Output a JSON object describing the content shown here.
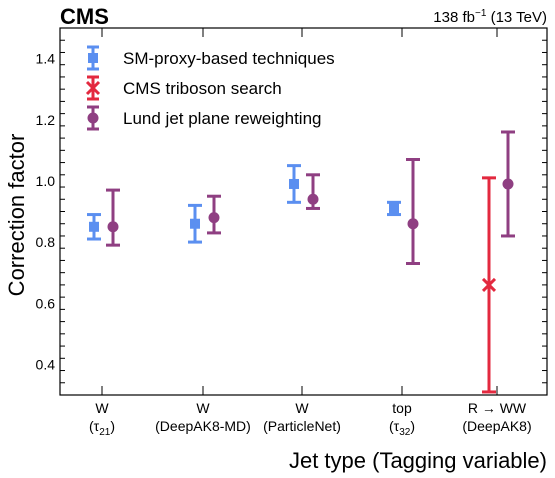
{
  "header": {
    "experiment": "CMS",
    "lumi": "138 fb",
    "lumi_exp": "−1",
    "energy": " (13 TeV)"
  },
  "chart_data": {
    "type": "scatter",
    "xlabel": "Jet type (Tagging variable)",
    "ylabel": "Correction factor",
    "ylim": [
      0.3,
      1.5
    ],
    "yticks": [
      0.4,
      0.6,
      0.8,
      1.0,
      1.2,
      1.4
    ],
    "ytick_labels": [
      "0.4",
      "0.6",
      "0.8",
      "1.0",
      "1.2",
      "1.4"
    ],
    "grid": false,
    "legend_position": "top-left",
    "categories": [
      {
        "line1": "W",
        "line2_pre": "(",
        "line2_sym": "τ",
        "line2_sub": "21",
        "line2_post": ")"
      },
      {
        "line1": "W",
        "line2_pre": "(DeepAK8-MD)",
        "line2_sym": "",
        "line2_sub": "",
        "line2_post": ""
      },
      {
        "line1": "W",
        "line2_pre": "(ParticleNet)",
        "line2_sym": "",
        "line2_sub": "",
        "line2_post": ""
      },
      {
        "line1": "top",
        "line2_pre": "(",
        "line2_sym": "τ",
        "line2_sub": "32",
        "line2_post": ")"
      },
      {
        "line1": "R  →  WW",
        "line2_pre": "(DeepAK8)",
        "line2_sym": "",
        "line2_sub": "",
        "line2_post": ""
      }
    ],
    "series": [
      {
        "name": "SM-proxy-based techniques",
        "color": "#5b8ff0",
        "marker": "square",
        "points": [
          {
            "cat": 0,
            "y": 0.85,
            "lo": 0.81,
            "hi": 0.89
          },
          {
            "cat": 1,
            "y": 0.86,
            "lo": 0.8,
            "hi": 0.92
          },
          {
            "cat": 2,
            "y": 0.99,
            "lo": 0.93,
            "hi": 1.05
          },
          {
            "cat": 3,
            "y": 0.91,
            "lo": 0.89,
            "hi": 0.93
          }
        ]
      },
      {
        "name": "CMS triboson search",
        "color": "#e3293f",
        "marker": "cross",
        "points": [
          {
            "cat": 4,
            "y": 0.66,
            "lo": 0.31,
            "hi": 1.01
          }
        ]
      },
      {
        "name": "Lund jet plane reweighting",
        "color": "#8f3f82",
        "marker": "circle",
        "points": [
          {
            "cat": 0,
            "y": 0.85,
            "lo": 0.79,
            "hi": 0.97
          },
          {
            "cat": 1,
            "y": 0.88,
            "lo": 0.83,
            "hi": 0.95
          },
          {
            "cat": 2,
            "y": 0.94,
            "lo": 0.91,
            "hi": 1.02
          },
          {
            "cat": 3,
            "y": 0.86,
            "lo": 0.73,
            "hi": 1.07
          },
          {
            "cat": 4,
            "y": 0.99,
            "lo": 0.82,
            "hi": 1.16
          }
        ]
      }
    ]
  }
}
